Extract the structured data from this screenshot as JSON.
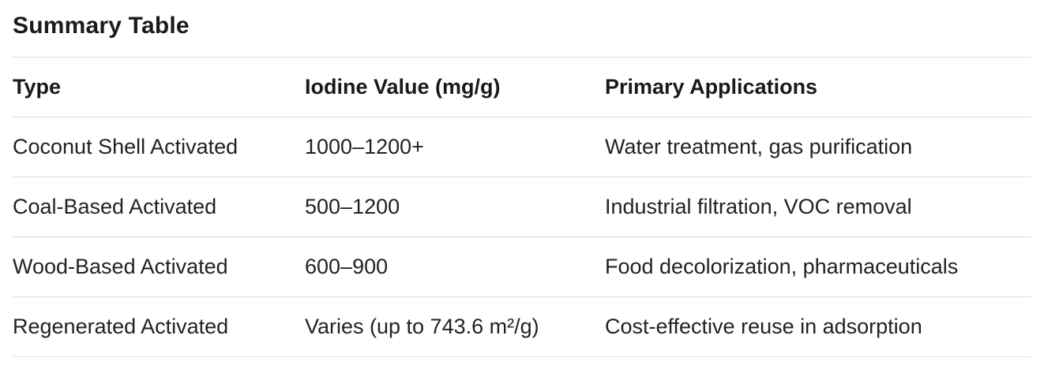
{
  "page": {
    "background_color": "#ffffff",
    "text_color": "#1a1a1a",
    "divider_color": "#dcdcdc"
  },
  "title": "Summary Table",
  "table": {
    "columns": [
      "Type",
      "Iodine Value (mg/g)",
      "Primary Applications"
    ],
    "rows": [
      {
        "type": "Coconut Shell Activated",
        "iodine_value": "1000–1200+",
        "applications": "Water treatment, gas purification"
      },
      {
        "type": "Coal-Based Activated",
        "iodine_value": "500–1200",
        "applications": "Industrial filtration, VOC removal"
      },
      {
        "type": "Wood-Based Activated",
        "iodine_value": "600–900",
        "applications": "Food decolorization, pharmaceuticals"
      },
      {
        "type": "Regenerated Activated",
        "iodine_value": "Varies (up to 743.6 m²/g)",
        "applications": "Cost-effective reuse in adsorption"
      }
    ]
  }
}
